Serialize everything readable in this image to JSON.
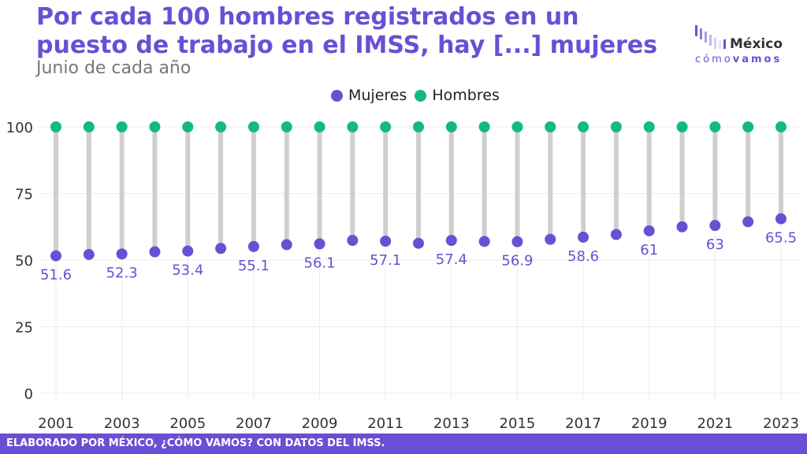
{
  "header": {
    "title": "Por cada 100 hombres registrados en un puesto de trabajo en el IMSS, hay [...] mujeres",
    "subtitle": "Junio de cada año"
  },
  "logo": {
    "word": "México",
    "sub_light": "cómo",
    "sub_bold": "vamos"
  },
  "legend": [
    {
      "label": "Mujeres",
      "color": "#6a4fd4"
    },
    {
      "label": "Hombres",
      "color": "#12b886"
    }
  ],
  "chart_data": {
    "type": "dumbbell",
    "x": [
      2001,
      2002,
      2003,
      2004,
      2005,
      2006,
      2007,
      2008,
      2009,
      2010,
      2011,
      2012,
      2013,
      2014,
      2015,
      2016,
      2017,
      2018,
      2019,
      2020,
      2021,
      2022,
      2023
    ],
    "series": [
      {
        "name": "Mujeres",
        "color": "#6a4fd4",
        "values": [
          51.6,
          52.1,
          52.3,
          53.1,
          53.4,
          54.4,
          55.1,
          55.8,
          56.1,
          57.4,
          57.1,
          56.3,
          57.4,
          57.0,
          56.9,
          57.8,
          58.6,
          59.6,
          61,
          62.5,
          63,
          64.4,
          65.5
        ]
      },
      {
        "name": "Hombres",
        "color": "#12b886",
        "values": [
          100,
          100,
          100,
          100,
          100,
          100,
          100,
          100,
          100,
          100,
          100,
          100,
          100,
          100,
          100,
          100,
          100,
          100,
          100,
          100,
          100,
          100,
          100
        ]
      }
    ],
    "data_labels": [
      {
        "year": 2001,
        "text": "51.6"
      },
      {
        "year": 2003,
        "text": "52.3"
      },
      {
        "year": 2005,
        "text": "53.4"
      },
      {
        "year": 2007,
        "text": "55.1"
      },
      {
        "year": 2009,
        "text": "56.1"
      },
      {
        "year": 2011,
        "text": "57.1"
      },
      {
        "year": 2013,
        "text": "57.4"
      },
      {
        "year": 2015,
        "text": "56.9"
      },
      {
        "year": 2017,
        "text": "58.6"
      },
      {
        "year": 2019,
        "text": "61"
      },
      {
        "year": 2021,
        "text": "63"
      },
      {
        "year": 2023,
        "text": "65.5"
      }
    ],
    "x_ticks": [
      2001,
      2003,
      2005,
      2007,
      2009,
      2011,
      2013,
      2015,
      2017,
      2019,
      2021,
      2023
    ],
    "y_ticks": [
      0,
      25,
      50,
      75,
      100
    ],
    "ylim": [
      0,
      100
    ],
    "xlim": [
      2001,
      2023
    ],
    "grid": true,
    "legend_position": "top-center",
    "connector_color": "#cfcfcf",
    "grid_color": "#ececec"
  },
  "footer": {
    "text": "ELABORADO POR MÉXICO, ¿CÓMO VAMOS? CON DATOS DEL IMSS."
  }
}
